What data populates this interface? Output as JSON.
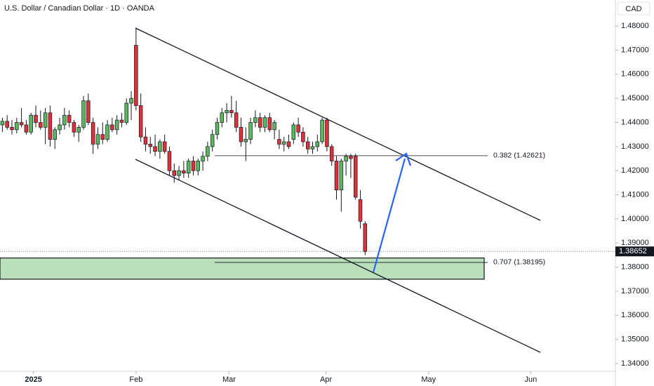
{
  "chart_data": {
    "type": "candlestick",
    "title": "U.S. Dollar / Canadian Dollar · 1D · OANDA",
    "currency": "CAD",
    "x": [
      0,
      1,
      2,
      3,
      4,
      5,
      6,
      7,
      8,
      9,
      10,
      11,
      12,
      13,
      14,
      15,
      16,
      17,
      18,
      19,
      20,
      21,
      22,
      23,
      24,
      25,
      26,
      27,
      28,
      29,
      30,
      31,
      32,
      33,
      34,
      35,
      36,
      37,
      38,
      39,
      40,
      41,
      42,
      43,
      44,
      45,
      46,
      47,
      48,
      49,
      50,
      51,
      52,
      53,
      54,
      55,
      56,
      57,
      58,
      59,
      60,
      61,
      62,
      63,
      64,
      65,
      66,
      67,
      68,
      69,
      70,
      71,
      72,
      73,
      74,
      75,
      76
    ],
    "open": [
      1.439,
      1.4405,
      1.438,
      1.437,
      1.44,
      1.439,
      1.436,
      1.443,
      1.44,
      1.438,
      1.444,
      1.433,
      1.437,
      1.439,
      1.443,
      1.44,
      1.436,
      1.438,
      1.449,
      1.44,
      1.431,
      1.435,
      1.433,
      1.439,
      1.437,
      1.441,
      1.44,
      1.448,
      1.472,
      1.447,
      1.434,
      1.431,
      1.43,
      1.428,
      1.432,
      1.428,
      1.42,
      1.418,
      1.42,
      1.419,
      1.424,
      1.42,
      1.424,
      1.426,
      1.43,
      1.435,
      1.44,
      1.444,
      1.445,
      1.444,
      1.438,
      1.432,
      1.433,
      1.44,
      1.442,
      1.438,
      1.442,
      1.437,
      1.433,
      1.431,
      1.432,
      1.433,
      1.439,
      1.436,
      1.432,
      1.429,
      1.43,
      1.432,
      1.441,
      1.43,
      1.424,
      1.412,
      1.424,
      1.426,
      1.426,
      1.408,
      1.398
    ],
    "high": [
      1.442,
      1.443,
      1.441,
      1.442,
      1.446,
      1.441,
      1.444,
      1.447,
      1.445,
      1.446,
      1.447,
      1.438,
      1.442,
      1.446,
      1.445,
      1.441,
      1.439,
      1.451,
      1.452,
      1.442,
      1.438,
      1.44,
      1.441,
      1.442,
      1.443,
      1.444,
      1.45,
      1.453,
      1.4793,
      1.452,
      1.438,
      1.434,
      1.435,
      1.433,
      1.435,
      1.43,
      1.423,
      1.422,
      1.424,
      1.425,
      1.426,
      1.425,
      1.428,
      1.432,
      1.437,
      1.442,
      1.446,
      1.448,
      1.451,
      1.449,
      1.442,
      1.438,
      1.442,
      1.445,
      1.444,
      1.443,
      1.444,
      1.441,
      1.437,
      1.434,
      1.435,
      1.44,
      1.442,
      1.438,
      1.434,
      1.432,
      1.435,
      1.442,
      1.442,
      1.431,
      1.426,
      1.425,
      1.427,
      1.427,
      1.427,
      1.412,
      1.399
    ],
    "low": [
      1.436,
      1.437,
      1.435,
      1.4355,
      1.438,
      1.435,
      1.435,
      1.438,
      1.437,
      1.431,
      1.43,
      1.429,
      1.435,
      1.437,
      1.438,
      1.434,
      1.432,
      1.437,
      1.439,
      1.427,
      1.429,
      1.431,
      1.432,
      1.436,
      1.435,
      1.438,
      1.439,
      1.441,
      1.445,
      1.432,
      1.428,
      1.427,
      1.426,
      1.425,
      1.427,
      1.418,
      1.415,
      1.416,
      1.417,
      1.417,
      1.418,
      1.418,
      1.42,
      1.424,
      1.428,
      1.433,
      1.438,
      1.44,
      1.442,
      1.436,
      1.43,
      1.424,
      1.431,
      1.438,
      1.436,
      1.436,
      1.436,
      1.433,
      1.429,
      1.428,
      1.429,
      1.431,
      1.434,
      1.43,
      1.427,
      1.427,
      1.428,
      1.431,
      1.428,
      1.422,
      1.408,
      1.403,
      1.418,
      1.417,
      1.408,
      1.396,
      1.385
    ],
    "close": [
      1.4405,
      1.438,
      1.437,
      1.44,
      1.439,
      1.436,
      1.443,
      1.44,
      1.438,
      1.444,
      1.433,
      1.437,
      1.439,
      1.443,
      1.44,
      1.436,
      1.438,
      1.449,
      1.44,
      1.431,
      1.435,
      1.433,
      1.439,
      1.437,
      1.441,
      1.44,
      1.448,
      1.45,
      1.447,
      1.434,
      1.431,
      1.43,
      1.428,
      1.432,
      1.428,
      1.42,
      1.418,
      1.42,
      1.419,
      1.424,
      1.42,
      1.424,
      1.426,
      1.43,
      1.435,
      1.44,
      1.444,
      1.445,
      1.444,
      1.438,
      1.432,
      1.433,
      1.44,
      1.442,
      1.438,
      1.442,
      1.437,
      1.44,
      1.431,
      1.432,
      1.43,
      1.439,
      1.436,
      1.432,
      1.429,
      1.43,
      1.432,
      1.441,
      1.43,
      1.424,
      1.412,
      1.424,
      1.426,
      1.425,
      1.409,
      1.399,
      1.3865
    ],
    "up_color": "#5cb85c",
    "down_color": "#e0303a",
    "xlim": [
      -0.5,
      128
    ],
    "xticks": [
      {
        "value": 6.5,
        "label": "2025"
      },
      {
        "value": 28,
        "label": "Feb"
      },
      {
        "value": 47.5,
        "label": "Mar"
      },
      {
        "value": 67.8,
        "label": "Apr"
      },
      {
        "value": 89.3,
        "label": "May"
      },
      {
        "value": 110.7,
        "label": "Jun"
      }
    ],
    "ylim": [
      1.3371,
      1.4908
    ],
    "yticks": [
      {
        "value": 1.48,
        "label": "1.48000"
      },
      {
        "value": 1.47,
        "label": "1.47000"
      },
      {
        "value": 1.46,
        "label": "1.46000"
      },
      {
        "value": 1.45,
        "label": "1.45000"
      },
      {
        "value": 1.44,
        "label": "1.44000"
      },
      {
        "value": 1.43,
        "label": "1.43000"
      },
      {
        "value": 1.42,
        "label": "1.42000"
      },
      {
        "value": 1.41,
        "label": "1.41000"
      },
      {
        "value": 1.4,
        "label": "1.40000"
      },
      {
        "value": 1.39,
        "label": "1.39000"
      },
      {
        "value": 1.38,
        "label": "1.38000"
      },
      {
        "value": 1.37,
        "label": "1.37000"
      },
      {
        "value": 1.36,
        "label": "1.36000"
      },
      {
        "value": 1.35,
        "label": "1.35000"
      },
      {
        "value": 1.34,
        "label": "1.34000"
      }
    ],
    "last_price": 1.38652,
    "zone": [
      1.375,
      1.3838
    ],
    "levels": [
      {
        "value": 1.42621,
        "label": "0.382 (1.42621)"
      },
      {
        "value": 1.38195,
        "label": "0.707 (1.38195)"
      }
    ]
  }
}
